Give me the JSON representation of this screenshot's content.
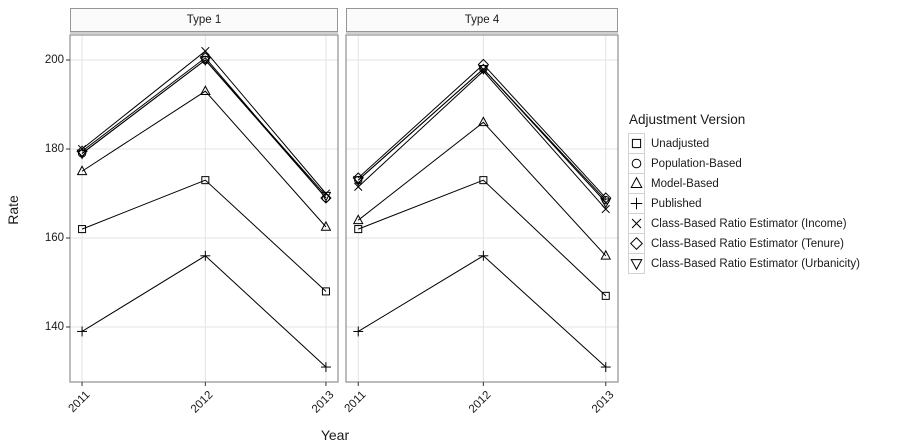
{
  "chart_data": {
    "type": "line",
    "title": "",
    "xlabel": "Year",
    "ylabel": "Rate",
    "legend_title": "Adjustment Version",
    "legend_position": "right",
    "grid": "major-light",
    "facets": [
      {
        "label": "Type 1"
      },
      {
        "label": "Type 4"
      }
    ],
    "categories": [
      "2011",
      "2012",
      "2013"
    ],
    "yticks": [
      200,
      180,
      160,
      140
    ],
    "ylim": [
      127.5,
      205.5
    ],
    "series": [
      {
        "name": "Unadjusted",
        "marker": "square-icon",
        "values": [
          [
            162,
            173,
            148
          ],
          [
            162,
            173,
            147
          ]
        ]
      },
      {
        "name": "Population-Based",
        "marker": "circle-icon",
        "values": [
          [
            179,
            200,
            169
          ],
          [
            173,
            198,
            168.5
          ]
        ]
      },
      {
        "name": "Model-Based",
        "marker": "triangle-up-icon",
        "values": [
          [
            175,
            193,
            162.5
          ],
          [
            164,
            186,
            156
          ]
        ]
      },
      {
        "name": "Published",
        "marker": "plus-icon",
        "values": [
          [
            139,
            156,
            131
          ],
          [
            139,
            156,
            131
          ]
        ]
      },
      {
        "name": "Class-Based Ratio Estimator (Income)",
        "marker": "x-icon",
        "values": [
          [
            180,
            202,
            170
          ],
          [
            171.5,
            197.5,
            166.5
          ]
        ]
      },
      {
        "name": "Class-Based Ratio Estimator (Tenure)",
        "marker": "diamond-icon",
        "values": [
          [
            179.5,
            200.5,
            169
          ],
          [
            173.5,
            199,
            169
          ]
        ]
      },
      {
        "name": "Class-Based Ratio Estimator (Urbanicity)",
        "marker": "triangle-down-icon",
        "values": [
          [
            179,
            200,
            169.5
          ],
          [
            173,
            198,
            168
          ]
        ]
      }
    ],
    "colors": {
      "line": "#000000",
      "grid": "#e3e3e3",
      "panel_border": "#8f8f8f",
      "tick": "#333333",
      "strip_fill": "#fbfbfb"
    }
  }
}
